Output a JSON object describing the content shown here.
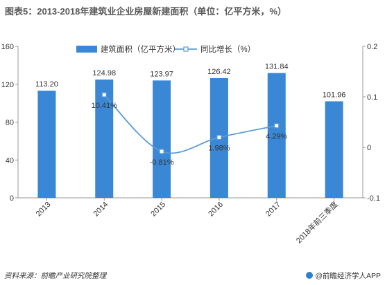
{
  "chart_data": {
    "type": "bar",
    "title": "图表5：2013-2018年建筑业企业房屋新建面积（单位：亿平方米，%）",
    "categories": [
      "2013",
      "2014",
      "2015",
      "2016",
      "2017",
      "2018年前三季度"
    ],
    "series": [
      {
        "name": "建筑面积（亿平方米）",
        "type": "bar",
        "axis": "left",
        "values": [
          113.2,
          124.98,
          123.97,
          126.42,
          131.84,
          101.96
        ],
        "labels": [
          "113.20",
          "124.98",
          "123.97",
          "126.42",
          "131.84",
          "101.96"
        ]
      },
      {
        "name": "同比增长（%）",
        "type": "line",
        "axis": "right",
        "values": [
          null,
          0.1041,
          -0.0081,
          0.0198,
          0.0429,
          null
        ],
        "labels": [
          "",
          "10.41%",
          "-0.81%",
          "1.98%",
          "4.29%",
          ""
        ]
      }
    ],
    "ylim_left": [
      0,
      160
    ],
    "yticks_left": [
      "0",
      "40",
      "80",
      "120",
      "160"
    ],
    "ylim_right": [
      -0.1,
      0.2
    ],
    "yticks_right": [
      "-0.1",
      "0",
      "0.1",
      "0.2"
    ],
    "legend_position": "top",
    "colors": {
      "bar": "#3a87d6",
      "line": "#5b9bd5",
      "text": "#333333"
    }
  },
  "footer": {
    "source": "资料来源：前瞻产业研究院整理",
    "brand": "@前瞻经济学人APP"
  }
}
